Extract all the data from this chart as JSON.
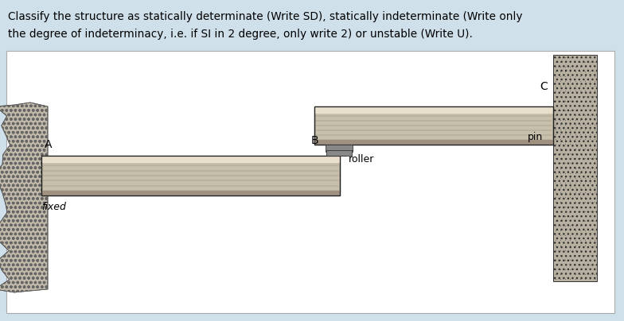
{
  "bg_color": "#cfe0ea",
  "diagram_bg": "#ffffff",
  "title_line1": "Classify the structure as statically determinate (Write SD), statically indeterminate (Write only",
  "title_line2": "the degree of indeterminacy, i.e. if SI in 2 degree, only write 2) or unstable (Write U).",
  "title_fontsize": 9.8,
  "label_A": "A",
  "label_B": "B",
  "label_C": "C",
  "label_fixed": "fixed",
  "label_roller": "roller",
  "label_pin": "pin",
  "beam_color": "#c8c0aa",
  "beam_edge_color": "#222222",
  "wall_color": "#b8b0a0",
  "wall_edge_color": "#333333",
  "roller_post_color": "#999999",
  "line_color": "#555555"
}
